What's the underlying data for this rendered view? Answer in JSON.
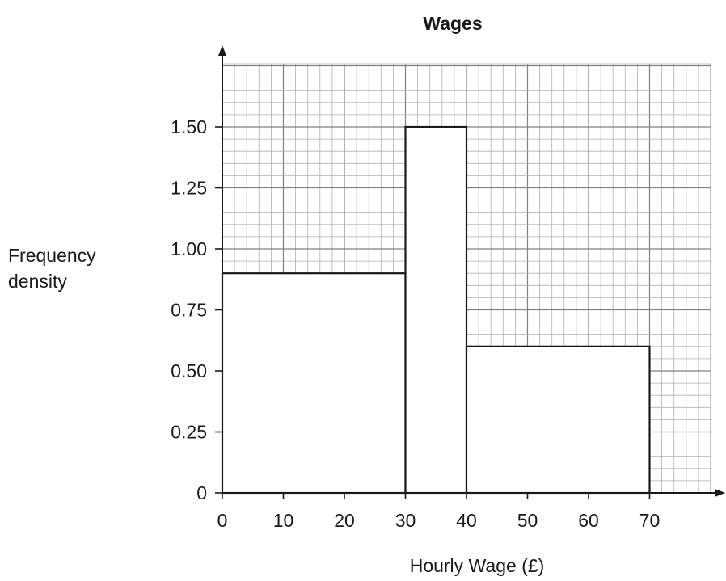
{
  "chart_data": {
    "type": "bar",
    "subtype": "histogram",
    "title": "Wages",
    "xlabel": "Hourly Wage (£)",
    "ylabel_lines": [
      "Frequency",
      "density"
    ],
    "xlim": [
      0,
      80
    ],
    "ylim": [
      0,
      1.75
    ],
    "x_ticks": [
      "0",
      "10",
      "20",
      "30",
      "40",
      "50",
      "60",
      "70"
    ],
    "y_ticks": [
      "0",
      "0.25",
      "0.50",
      "0.75",
      "1.00",
      "1.25",
      "1.50"
    ],
    "bins": [
      {
        "x0": 0,
        "x1": 30,
        "value": 0.9
      },
      {
        "x0": 30,
        "x1": 40,
        "value": 1.5
      },
      {
        "x0": 40,
        "x1": 70,
        "value": 0.6
      }
    ],
    "grid": true,
    "grid_minor_x": 2,
    "grid_minor_y": 0.05,
    "colors": {
      "grid_minor": "#b0b0b0",
      "grid_major": "#808080",
      "bar_fill": "#ffffff",
      "axis": "#1a1a1a"
    }
  }
}
